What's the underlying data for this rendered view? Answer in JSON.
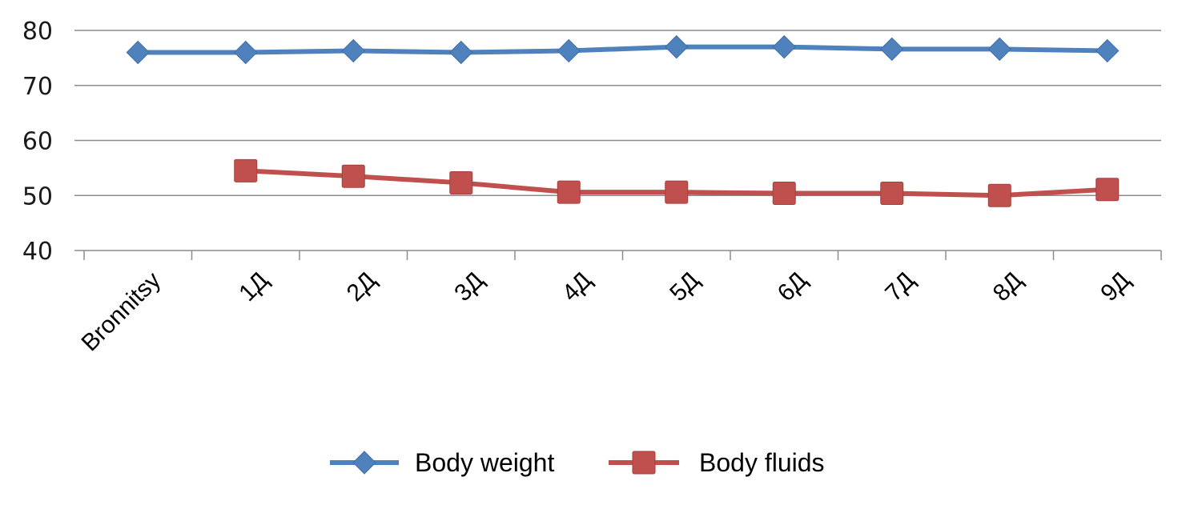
{
  "chart_data": {
    "type": "line",
    "title": "",
    "xlabel": "",
    "ylabel": "",
    "ylim": [
      40,
      80
    ],
    "y_ticks": [
      40,
      50,
      60,
      70,
      80
    ],
    "grid": true,
    "legend_position": "bottom",
    "categories": [
      "Bronnitsy",
      "1Д",
      "2Д",
      "3Д",
      "4Д",
      "5Д",
      "6Д",
      "7Д",
      "8Д",
      "9Д"
    ],
    "series": [
      {
        "name": "Body weight",
        "color": "#4f81bd",
        "marker": "diamond",
        "values": [
          76.0,
          76.0,
          76.3,
          76.0,
          76.3,
          77.0,
          77.0,
          76.6,
          76.6,
          76.3
        ]
      },
      {
        "name": "Body fluids",
        "color": "#c0504d",
        "marker": "square",
        "values": [
          null,
          54.5,
          53.5,
          52.3,
          50.6,
          50.6,
          50.4,
          50.4,
          50.0,
          51.1
        ]
      }
    ]
  }
}
